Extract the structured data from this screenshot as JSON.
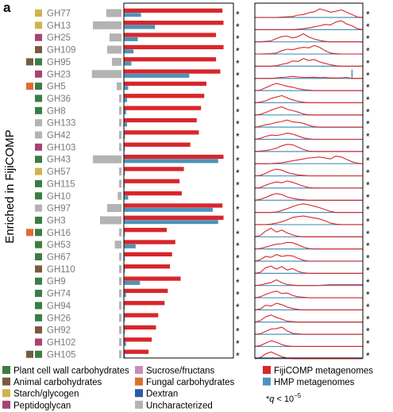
{
  "panel_label": "a",
  "side_label": "Enriched in FijiCOMP",
  "significance_note": {
    "prefix": "*",
    "symbol": "q",
    "relation": "< 10",
    "exponent": "−5"
  },
  "colors": {
    "fiji": "#d7262b",
    "hmp": "#4d93b8",
    "gray_bar": "#b3b3b3",
    "label_gray": "#7a7a7a",
    "categories": {
      "plant": "#3a7d44",
      "animal": "#7a5a3e",
      "starch": "#d3b24a",
      "peptidoglycan": "#a84275",
      "sucrose": "#c78db4",
      "fungal": "#e06b33",
      "dextran": "#2d5aa8",
      "uncharacterized": "#b3b3b3"
    }
  },
  "legend": {
    "categories": [
      {
        "key": "plant",
        "label": "Plant cell wall carbohydrates"
      },
      {
        "key": "animal",
        "label": "Animal carbohydrates"
      },
      {
        "key": "starch",
        "label": "Starch/glycogen"
      },
      {
        "key": "peptidoglycan",
        "label": "Peptidoglycan"
      },
      {
        "key": "sucrose",
        "label": "Sucrose/fructans"
      },
      {
        "key": "fungal",
        "label": "Fungal carbohydrates"
      },
      {
        "key": "dextran",
        "label": "Dextran"
      },
      {
        "key": "uncharacterized",
        "label": "Uncharacterized"
      }
    ],
    "series": [
      {
        "key": "fiji",
        "label": "FijiCOMP metagenomes"
      },
      {
        "key": "hmp",
        "label": "HMP metagenomes"
      }
    ]
  },
  "chart_data": {
    "type": "bar",
    "title": "",
    "ylabel": "Enriched in FijiCOMP",
    "categories": [
      "GH77",
      "GH13",
      "GH25",
      "GH109",
      "GH95",
      "GH23",
      "GH5",
      "GH36",
      "GH8",
      "GH133",
      "GH42",
      "GH103",
      "GH43",
      "GH57",
      "GH115",
      "GH10",
      "GH97",
      "GH3",
      "GH16",
      "GH53",
      "GH67",
      "GH110",
      "GH9",
      "GH74",
      "GH94",
      "GH26",
      "GH92",
      "GH102",
      "GH105"
    ],
    "family_categories": [
      [
        "starch"
      ],
      [
        "starch"
      ],
      [
        "peptidoglycan"
      ],
      [
        "animal"
      ],
      [
        "animal",
        "plant"
      ],
      [
        "peptidoglycan"
      ],
      [
        "fungal",
        "plant"
      ],
      [
        "plant"
      ],
      [
        "plant"
      ],
      [
        "uncharacterized"
      ],
      [
        "uncharacterized"
      ],
      [
        "peptidoglycan"
      ],
      [
        "plant"
      ],
      [
        "starch"
      ],
      [
        "plant"
      ],
      [
        "plant"
      ],
      [
        "uncharacterized"
      ],
      [
        "plant"
      ],
      [
        "fungal",
        "plant"
      ],
      [
        "plant"
      ],
      [
        "plant"
      ],
      [
        "animal"
      ],
      [
        "plant"
      ],
      [
        "plant"
      ],
      [
        "plant"
      ],
      [
        "plant"
      ],
      [
        "animal"
      ],
      [
        "peptidoglycan"
      ],
      [
        "animal",
        "plant"
      ]
    ],
    "xlim": [
      0,
      1
    ],
    "series": [
      {
        "name": "FijiCOMP metagenomes",
        "key": "fiji",
        "values": [
          0.92,
          0.93,
          0.86,
          0.93,
          0.86,
          0.9,
          0.77,
          0.75,
          0.72,
          0.68,
          0.7,
          0.62,
          0.93,
          0.56,
          0.52,
          0.54,
          0.92,
          0.93,
          0.4,
          0.48,
          0.45,
          0.43,
          0.53,
          0.41,
          0.38,
          0.32,
          0.3,
          0.26,
          0.23
        ]
      },
      {
        "name": "HMP metagenomes",
        "key": "hmp",
        "values": [
          0.16,
          0.29,
          0.13,
          0.09,
          0.07,
          0.61,
          0.04,
          0.03,
          0.02,
          0.03,
          0.01,
          0.01,
          0.88,
          0.01,
          0.01,
          0.04,
          0.83,
          0.88,
          0.01,
          0.11,
          0.01,
          0.01,
          0.15,
          0.02,
          0.01,
          0.01,
          0.01,
          0.02,
          0.01
        ]
      }
    ],
    "gray_bar_values": [
      0.32,
      0.6,
      0.25,
      0.3,
      0.2,
      0.62,
      0.1,
      0.05,
      0.05,
      0.05,
      0.05,
      0.05,
      0.6,
      0.05,
      0.05,
      0.08,
      0.3,
      0.45,
      0.05,
      0.14,
      0.05,
      0.05,
      0.05,
      0.05,
      0.05,
      0.05,
      0.05,
      0.05,
      0.05
    ],
    "significant": [
      true,
      true,
      true,
      true,
      true,
      true,
      true,
      true,
      true,
      true,
      true,
      true,
      true,
      true,
      true,
      true,
      true,
      true,
      true,
      true,
      true,
      true,
      true,
      true,
      true,
      true,
      true,
      true,
      true
    ],
    "density_panel": {
      "type": "line",
      "x": [
        0,
        0.05,
        0.1,
        0.15,
        0.2,
        0.25,
        0.3,
        0.35,
        0.4,
        0.45,
        0.5,
        0.55,
        0.6,
        0.65,
        0.7,
        0.75,
        0.8,
        0.85,
        0.9,
        0.95,
        1
      ],
      "profiles": [
        [
          0,
          0,
          0,
          0,
          0,
          0.04,
          0.07,
          0.1,
          0.25,
          0.3,
          0.5,
          0.6,
          0.9,
          0.75,
          0.55,
          0.65,
          0.8,
          0.55,
          0.3,
          0.05,
          0
        ],
        [
          0,
          0,
          0,
          0,
          0,
          0,
          0,
          0,
          0.05,
          0.1,
          0.18,
          0.3,
          0.4,
          0.55,
          0.5,
          0.8,
          0.95,
          0.6,
          0.4,
          0.1,
          0
        ],
        [
          0,
          0,
          0.05,
          0.1,
          0.35,
          0.55,
          0.6,
          0.4,
          0.55,
          0.85,
          0.5,
          0.3,
          0.15,
          0.05,
          0,
          0,
          0,
          0,
          0,
          0,
          0
        ],
        [
          0,
          0,
          0.02,
          0.05,
          0.1,
          0.35,
          0.5,
          0.45,
          0.6,
          0.7,
          0.65,
          0.9,
          0.7,
          0.35,
          0.1,
          0.05,
          0,
          0,
          0,
          0,
          0
        ],
        [
          0,
          0,
          0,
          0,
          0.05,
          0.2,
          0.3,
          0.55,
          0.5,
          0.8,
          0.6,
          0.7,
          0.45,
          0.3,
          0.15,
          0.05,
          0,
          0,
          0,
          0,
          0
        ],
        [
          0,
          0,
          0,
          0,
          0.05,
          0.1,
          0.15,
          0.2,
          0.15,
          0.1,
          0.1,
          0.12,
          0.08,
          0.1,
          0.05,
          0.05,
          0.05,
          0.1,
          0,
          0,
          0
        ],
        [
          0,
          0.05,
          0.3,
          0.55,
          0.75,
          0.6,
          0.45,
          0.35,
          0.2,
          0.1,
          0.05,
          0,
          0,
          0,
          0,
          0,
          0,
          0,
          0,
          0,
          0
        ],
        [
          0,
          0.05,
          0.2,
          0.45,
          0.6,
          0.75,
          0.5,
          0.3,
          0.15,
          0.05,
          0,
          0,
          0,
          0,
          0,
          0,
          0,
          0,
          0,
          0,
          0
        ],
        [
          0,
          0.05,
          0.25,
          0.5,
          0.7,
          0.85,
          0.6,
          0.45,
          0.3,
          0.1,
          0,
          0,
          0,
          0,
          0,
          0,
          0,
          0,
          0,
          0,
          0
        ],
        [
          0,
          0.1,
          0.25,
          0.35,
          0.5,
          0.6,
          0.75,
          0.55,
          0.5,
          0.4,
          0.2,
          0.05,
          0,
          0,
          0,
          0,
          0,
          0,
          0,
          0,
          0
        ],
        [
          0,
          0.1,
          0.3,
          0.45,
          0.4,
          0.5,
          0.65,
          0.55,
          0.35,
          0.15,
          0.05,
          0,
          0,
          0,
          0,
          0,
          0,
          0,
          0,
          0,
          0
        ],
        [
          0,
          0.05,
          0.1,
          0.2,
          0.35,
          0.6,
          0.75,
          0.7,
          0.45,
          0.2,
          0.05,
          0,
          0,
          0,
          0,
          0,
          0,
          0,
          0,
          0,
          0
        ],
        [
          0,
          0,
          0,
          0.02,
          0.05,
          0.1,
          0.2,
          0.3,
          0.4,
          0.5,
          0.6,
          0.65,
          0.7,
          0.6,
          0.5,
          0.8,
          0.7,
          0.45,
          0.2,
          0.05,
          0
        ],
        [
          0,
          0.05,
          0.25,
          0.55,
          0.7,
          0.6,
          0.35,
          0.2,
          0.1,
          0.05,
          0,
          0,
          0,
          0,
          0,
          0,
          0,
          0,
          0,
          0,
          0
        ],
        [
          0,
          0.05,
          0.3,
          0.5,
          0.65,
          0.55,
          0.75,
          0.6,
          0.4,
          0.2,
          0.05,
          0,
          0,
          0,
          0,
          0,
          0,
          0,
          0,
          0,
          0
        ],
        [
          0,
          0.1,
          0.3,
          0.55,
          0.7,
          0.6,
          0.35,
          0.2,
          0.1,
          0.05,
          0,
          0,
          0,
          0,
          0,
          0,
          0,
          0,
          0,
          0,
          0
        ],
        [
          0,
          0,
          0,
          0,
          0.05,
          0.2,
          0.4,
          0.6,
          0.8,
          0.9,
          0.8,
          0.65,
          0.5,
          0.3,
          0.1,
          0,
          0,
          0,
          0,
          0,
          0
        ],
        [
          0,
          0,
          0,
          0.05,
          0.15,
          0.3,
          0.5,
          0.75,
          0.85,
          0.9,
          0.8,
          0.7,
          0.6,
          0.4,
          0.15,
          0.05,
          0,
          0,
          0,
          0,
          0
        ],
        [
          0,
          0.15,
          0.6,
          0.9,
          0.5,
          0.7,
          0.4,
          0.2,
          0.05,
          0,
          0,
          0,
          0,
          0,
          0,
          0,
          0,
          0,
          0,
          0,
          0
        ],
        [
          0,
          0.05,
          0.2,
          0.35,
          0.5,
          0.55,
          0.7,
          0.65,
          0.45,
          0.2,
          0.05,
          0,
          0,
          0,
          0,
          0,
          0,
          0,
          0,
          0,
          0
        ],
        [
          0,
          0.15,
          0.5,
          0.4,
          0.7,
          0.5,
          0.6,
          0.55,
          0.3,
          0.1,
          0,
          0,
          0,
          0,
          0,
          0,
          0,
          0,
          0,
          0,
          0
        ],
        [
          0,
          0.1,
          0.6,
          0.75,
          0.45,
          0.7,
          0.35,
          0.5,
          0.2,
          0.05,
          0,
          0,
          0,
          0,
          0,
          0,
          0,
          0,
          0,
          0,
          0
        ],
        [
          0,
          0.05,
          0.2,
          0.3,
          0.6,
          0.3,
          0.1,
          0.05,
          0,
          0,
          0,
          0,
          0.02,
          0.05,
          0.08,
          0.08,
          0.08,
          0.08,
          0.08,
          0.08,
          0.08
        ],
        [
          0,
          0.1,
          0.35,
          0.55,
          0.7,
          0.45,
          0.5,
          0.25,
          0.1,
          0.05,
          0,
          0,
          0,
          0,
          0,
          0,
          0,
          0,
          0,
          0,
          0
        ],
        [
          0,
          0.1,
          0.5,
          0.4,
          0.7,
          0.55,
          0.3,
          0.15,
          0.05,
          0,
          0,
          0,
          0,
          0,
          0,
          0,
          0,
          0,
          0,
          0,
          0
        ],
        [
          0,
          0.15,
          0.55,
          0.75,
          0.5,
          0.3,
          0.1,
          0.05,
          0,
          0,
          0,
          0,
          0,
          0,
          0,
          0,
          0,
          0,
          0,
          0,
          0
        ],
        [
          0,
          0.05,
          0.3,
          0.55,
          0.6,
          0.75,
          0.35,
          0.1,
          0.05,
          0,
          0,
          0,
          0,
          0,
          0,
          0,
          0,
          0,
          0,
          0,
          0
        ],
        [
          0,
          0.1,
          0.35,
          0.6,
          0.45,
          0.2,
          0.05,
          0,
          0,
          0,
          0,
          0,
          0,
          0,
          0,
          0,
          0,
          0,
          0,
          0,
          0
        ],
        [
          0,
          0.1,
          0.5,
          0.7,
          0.45,
          0.2,
          0.05,
          0,
          0,
          0,
          0,
          0,
          0,
          0,
          0,
          0,
          0,
          0,
          0,
          0,
          0
        ]
      ]
    }
  }
}
